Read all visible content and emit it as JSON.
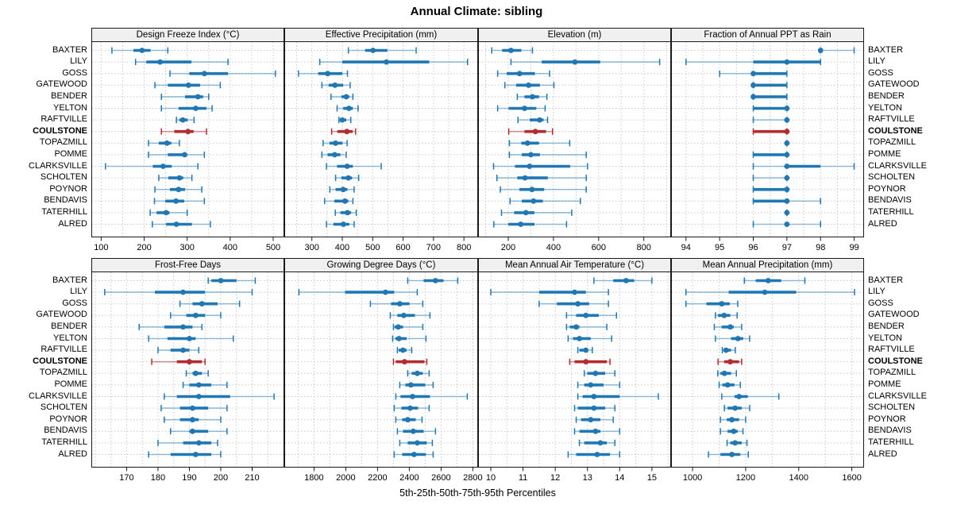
{
  "title": "Annual Climate: sibling",
  "caption": "5th-25th-50th-75th-95th Percentiles",
  "stations": [
    "BAXTER",
    "LILY",
    "GOSS",
    "GATEWOOD",
    "BENDER",
    "YELTON",
    "RAFTVILLE",
    "COULSTONE",
    "TOPAZMILL",
    "POMME",
    "CLARKSVILLE",
    "SCHOLTEN",
    "POYNOR",
    "BENDAVIS",
    "TATERHILL",
    "ALRED"
  ],
  "highlight_station": "COULSTONE",
  "colors": {
    "series": "#1f77b4",
    "series_light": "rgba(31,119,180,0.45)",
    "highlight": "#b22c30",
    "highlight_light": "rgba(178,44,48,0.5)",
    "grid": "#c9c9c9",
    "header_bg": "#f0f0f0",
    "border": "#1a1a1a"
  },
  "chart_data": [
    {
      "type": "dotplot-percentiles",
      "title": "Design Freeze Index (°C)",
      "xlim": [
        79,
        524
      ],
      "ticks": [
        100,
        200,
        300,
        400,
        500
      ],
      "grid_step": 50,
      "percentile_labels": [
        "p5",
        "p25",
        "p50",
        "p75",
        "p95"
      ],
      "values": [
        [
          125,
          175,
          195,
          215,
          255
        ],
        [
          180,
          205,
          237,
          310,
          395
        ],
        [
          260,
          305,
          340,
          395,
          505
        ],
        [
          225,
          255,
          303,
          330,
          377
        ],
        [
          240,
          295,
          325,
          337,
          350
        ],
        [
          240,
          280,
          320,
          345,
          358
        ],
        [
          275,
          282,
          290,
          301,
          316
        ],
        [
          240,
          270,
          302,
          315,
          345
        ],
        [
          210,
          234,
          253,
          263,
          282
        ],
        [
          210,
          255,
          294,
          300,
          340
        ],
        [
          110,
          220,
          244,
          264,
          325
        ],
        [
          234,
          256,
          282,
          291,
          311
        ],
        [
          225,
          260,
          280,
          295,
          334
        ],
        [
          224,
          249,
          274,
          293,
          340
        ],
        [
          214,
          229,
          251,
          259,
          300
        ],
        [
          219,
          251,
          275,
          311,
          354
        ]
      ]
    },
    {
      "type": "dotplot-percentiles",
      "title": "Effective Precipitation (mm)",
      "xlim": [
        212,
        844
      ],
      "ticks": [
        300,
        400,
        500,
        600,
        700,
        800
      ],
      "grid_step": 50,
      "percentile_labels": [
        "p5",
        "p25",
        "p50",
        "p75",
        "p95"
      ],
      "values": [
        [
          420,
          475,
          501,
          548,
          643
        ],
        [
          326,
          400,
          545,
          686,
          812
        ],
        [
          256,
          321,
          352,
          400,
          417
        ],
        [
          333,
          355,
          376,
          403,
          426
        ],
        [
          363,
          397,
          413,
          423,
          435
        ],
        [
          383,
          403,
          422,
          435,
          452
        ],
        [
          389,
          392,
          400,
          413,
          428
        ],
        [
          365,
          384,
          415,
          434,
          444
        ],
        [
          337,
          358,
          378,
          400,
          416
        ],
        [
          333,
          352,
          375,
          394,
          413
        ],
        [
          348,
          383,
          416,
          435,
          528
        ],
        [
          378,
          397,
          420,
          432,
          454
        ],
        [
          359,
          378,
          403,
          417,
          439
        ],
        [
          342,
          374,
          409,
          420,
          435
        ],
        [
          377,
          394,
          417,
          429,
          446
        ],
        [
          348,
          371,
          404,
          423,
          439
        ]
      ]
    },
    {
      "type": "dotplot-percentiles",
      "title": "Elevation (m)",
      "xlim": [
        70,
        917
      ],
      "ticks": [
        200,
        400,
        600,
        800
      ],
      "grid_step": 100,
      "percentile_labels": [
        "p5",
        "p25",
        "p50",
        "p75",
        "p95"
      ],
      "values": [
        [
          127,
          173,
          212,
          258,
          307
        ],
        [
          212,
          348,
          495,
          607,
          870
        ],
        [
          153,
          193,
          250,
          318,
          383
        ],
        [
          185,
          235,
          290,
          340,
          402
        ],
        [
          240,
          272,
          307,
          336,
          371
        ],
        [
          153,
          202,
          272,
          324,
          363
        ],
        [
          243,
          295,
          339,
          356,
          374
        ],
        [
          202,
          272,
          320,
          367,
          396
        ],
        [
          205,
          258,
          285,
          336,
          472
        ],
        [
          205,
          260,
          300,
          340,
          545
        ],
        [
          135,
          230,
          294,
          474,
          551
        ],
        [
          150,
          240,
          274,
          375,
          545
        ],
        [
          165,
          249,
          305,
          359,
          545
        ],
        [
          208,
          260,
          312,
          353,
          519
        ],
        [
          170,
          226,
          278,
          316,
          481
        ],
        [
          136,
          200,
          255,
          316,
          458
        ]
      ]
    },
    {
      "type": "dotplot-percentiles",
      "title": "Fraction of Annual PPT as Rain",
      "xlim": [
        93.58,
        99.27
      ],
      "ticks": [
        94,
        95,
        96,
        97,
        98,
        99
      ],
      "grid_step": 0.5,
      "percentile_labels": [
        "p5",
        "p25",
        "p50",
        "p75",
        "p95"
      ],
      "values": [
        [
          98,
          98,
          98,
          98,
          99
        ],
        [
          94,
          96,
          97,
          98,
          98
        ],
        [
          95,
          96,
          96,
          97,
          97
        ],
        [
          96,
          96,
          96,
          97,
          97
        ],
        [
          96,
          96,
          96,
          97,
          97
        ],
        [
          96,
          96,
          97,
          97,
          97
        ],
        [
          96,
          97,
          97,
          97,
          97
        ],
        [
          96,
          96,
          97,
          97,
          97
        ],
        [
          97,
          97,
          97,
          97,
          97
        ],
        [
          96,
          96,
          97,
          97,
          97
        ],
        [
          96,
          97,
          97,
          98,
          99
        ],
        [
          96,
          97,
          97,
          97,
          97
        ],
        [
          96,
          96,
          97,
          97,
          97
        ],
        [
          96,
          96,
          97,
          97,
          98
        ],
        [
          97,
          97,
          97,
          97,
          97
        ],
        [
          96,
          97,
          97,
          97,
          98
        ]
      ]
    },
    {
      "type": "dotplot-percentiles",
      "title": "Frost-Free Days",
      "xlim": [
        159,
        220
      ],
      "ticks": [
        170,
        180,
        190,
        200,
        210
      ],
      "grid_step": 5,
      "percentile_labels": [
        "p5",
        "p25",
        "p50",
        "p75",
        "p95"
      ],
      "values": [
        [
          196,
          197,
          200,
          205,
          211
        ],
        [
          163,
          179,
          188,
          195,
          210
        ],
        [
          187,
          191,
          194,
          199,
          206
        ],
        [
          184,
          189,
          192,
          195,
          200
        ],
        [
          174,
          182,
          188,
          191,
          194
        ],
        [
          177,
          183,
          190,
          192,
          204
        ],
        [
          180,
          184,
          188,
          190,
          193
        ],
        [
          178,
          186,
          190,
          194,
          195
        ],
        [
          189,
          191,
          192,
          194,
          196
        ],
        [
          188,
          190,
          193,
          197,
          202
        ],
        [
          182,
          186,
          193,
          203,
          217
        ],
        [
          181,
          187,
          191,
          196,
          202
        ],
        [
          182,
          187,
          191,
          193,
          200
        ],
        [
          184,
          190,
          191,
          196,
          202
        ],
        [
          180,
          188,
          193,
          197,
          199
        ],
        [
          177,
          184,
          192,
          197,
          200
        ]
      ]
    },
    {
      "type": "dotplot-percentiles",
      "title": "Growing Degree Days (°C)",
      "xlim": [
        1618,
        2828
      ],
      "ticks": [
        1800,
        2000,
        2200,
        2400,
        2600,
        2800
      ],
      "grid_step": 100,
      "percentile_labels": [
        "p5",
        "p25",
        "p50",
        "p75",
        "p95"
      ],
      "values": [
        [
          2390,
          2490,
          2565,
          2615,
          2705
        ],
        [
          1705,
          1995,
          2250,
          2305,
          2450
        ],
        [
          2155,
          2285,
          2340,
          2400,
          2485
        ],
        [
          2280,
          2325,
          2365,
          2435,
          2530
        ],
        [
          2300,
          2307,
          2330,
          2360,
          2485
        ],
        [
          2295,
          2312,
          2335,
          2383,
          2505
        ],
        [
          2325,
          2333,
          2360,
          2383,
          2415
        ],
        [
          2300,
          2315,
          2370,
          2495,
          2510
        ],
        [
          2390,
          2415,
          2450,
          2485,
          2525
        ],
        [
          2340,
          2375,
          2410,
          2500,
          2550
        ],
        [
          2315,
          2345,
          2420,
          2530,
          2765
        ],
        [
          2305,
          2350,
          2405,
          2455,
          2525
        ],
        [
          2315,
          2355,
          2390,
          2440,
          2480
        ],
        [
          2325,
          2360,
          2425,
          2490,
          2565
        ],
        [
          2340,
          2390,
          2450,
          2510,
          2545
        ],
        [
          2305,
          2355,
          2430,
          2505,
          2550
        ]
      ]
    },
    {
      "type": "dotplot-percentiles",
      "title": "Mean Annual Air Temperature (°C)",
      "xlim": [
        9.63,
        15.57
      ],
      "ticks": [
        10,
        11,
        12,
        13,
        14,
        15
      ],
      "grid_step": 0.5,
      "percentile_labels": [
        "p5",
        "p25",
        "p50",
        "p75",
        "p95"
      ],
      "values": [
        [
          13.2,
          13.8,
          14.2,
          14.45,
          15.0
        ],
        [
          10.0,
          11.5,
          12.6,
          12.95,
          13.65
        ],
        [
          11.5,
          12.05,
          12.7,
          13.05,
          13.65
        ],
        [
          12.35,
          12.65,
          12.95,
          13.35,
          13.9
        ],
        [
          12.35,
          12.45,
          12.65,
          12.75,
          13.6
        ],
        [
          12.4,
          12.55,
          12.75,
          13.1,
          13.75
        ],
        [
          12.7,
          12.75,
          12.95,
          13.0,
          13.15
        ],
        [
          12.45,
          12.6,
          12.95,
          13.6,
          13.7
        ],
        [
          12.9,
          13.0,
          13.25,
          13.55,
          13.85
        ],
        [
          12.7,
          12.9,
          13.1,
          13.5,
          14.0
        ],
        [
          12.7,
          12.85,
          13.2,
          14.0,
          15.2
        ],
        [
          12.6,
          12.7,
          13.2,
          13.55,
          13.85
        ],
        [
          12.65,
          12.8,
          13.1,
          13.4,
          13.8
        ],
        [
          12.6,
          12.75,
          13.25,
          13.4,
          14.0
        ],
        [
          12.75,
          12.9,
          13.4,
          13.6,
          13.85
        ],
        [
          12.4,
          12.65,
          13.3,
          13.7,
          14.0
        ]
      ]
    },
    {
      "type": "dotplot-percentiles",
      "title": "Mean Annual Precipitation (mm)",
      "xlim": [
        922,
        1643
      ],
      "ticks": [
        1000,
        1200,
        1400,
        1600
      ],
      "grid_step": 100,
      "percentile_labels": [
        "p5",
        "p25",
        "p50",
        "p75",
        "p95"
      ],
      "values": [
        [
          1195,
          1238,
          1285,
          1334,
          1423
        ],
        [
          975,
          1136,
          1272,
          1390,
          1610
        ],
        [
          975,
          1052,
          1110,
          1140,
          1170
        ],
        [
          1086,
          1096,
          1119,
          1142,
          1168
        ],
        [
          1082,
          1109,
          1142,
          1155,
          1185
        ],
        [
          1086,
          1145,
          1171,
          1191,
          1215
        ],
        [
          1112,
          1116,
          1126,
          1145,
          1161
        ],
        [
          1096,
          1119,
          1142,
          1175,
          1185
        ],
        [
          1095,
          1105,
          1120,
          1145,
          1165
        ],
        [
          1100,
          1112,
          1132,
          1158,
          1180
        ],
        [
          1110,
          1158,
          1175,
          1208,
          1325
        ],
        [
          1120,
          1132,
          1160,
          1185,
          1215
        ],
        [
          1105,
          1129,
          1148,
          1175,
          1200
        ],
        [
          1105,
          1132,
          1155,
          1170,
          1190
        ],
        [
          1130,
          1142,
          1160,
          1185,
          1205
        ],
        [
          1060,
          1105,
          1148,
          1180,
          1210
        ]
      ]
    }
  ]
}
